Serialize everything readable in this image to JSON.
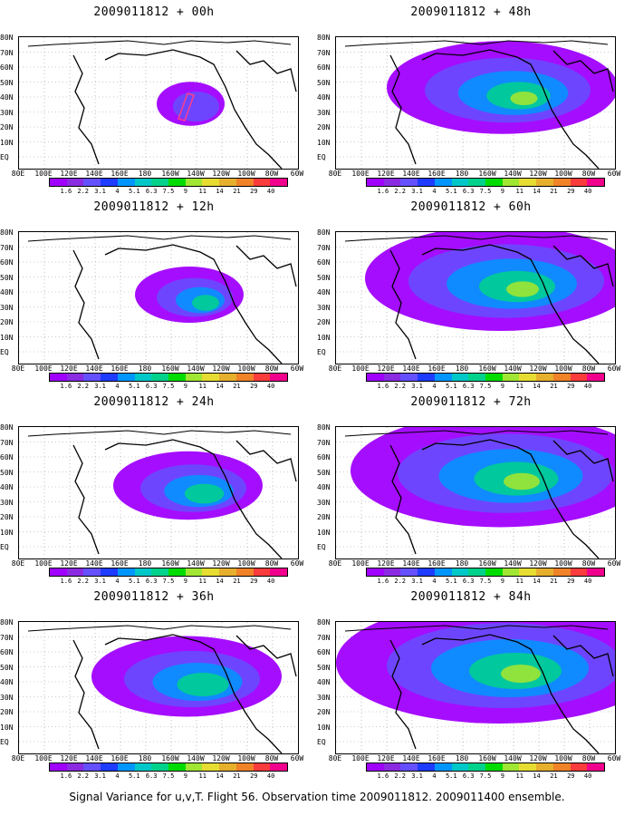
{
  "caption": "Signal Variance for u,v,T. Flight 56. Observation time 2009011812. 2009011400 ensemble.",
  "panels": [
    {
      "title": "2009011812 + 00h",
      "spread": 0.05
    },
    {
      "title": "2009011812 + 12h",
      "spread": 0.2
    },
    {
      "title": "2009011812 + 24h",
      "spread": 0.35
    },
    {
      "title": "2009011812 + 36h",
      "spread": 0.5
    },
    {
      "title": "2009011812 + 48h",
      "spread": 0.65
    },
    {
      "title": "2009011812 + 60h",
      "spread": 0.8
    },
    {
      "title": "2009011812 + 72h",
      "spread": 0.9
    },
    {
      "title": "2009011812 + 84h",
      "spread": 1.0
    }
  ],
  "ylabels": [
    "80N",
    "70N",
    "60N",
    "50N",
    "40N",
    "30N",
    "20N",
    "10N",
    "EQ"
  ],
  "xlabels": [
    "80E",
    "100E",
    "120E",
    "140E",
    "160E",
    "180",
    "160W",
    "140W",
    "120W",
    "100W",
    "80W",
    "60W"
  ],
  "colorbar": {
    "levels": [
      "1.6",
      "2.2",
      "3.1",
      "4",
      "5.1",
      "6.3",
      "7.5",
      "9",
      "11",
      "14",
      "21",
      "29",
      "40"
    ],
    "colors": [
      "#a000ff",
      "#8a2be2",
      "#6450ff",
      "#1e3cff",
      "#0096ff",
      "#00c8c8",
      "#00d28c",
      "#00dc00",
      "#a0e632",
      "#e6dc32",
      "#e6af2d",
      "#f08228",
      "#fa3c3c",
      "#f0008c"
    ]
  },
  "flight_track_color": "#ff3c8c"
}
